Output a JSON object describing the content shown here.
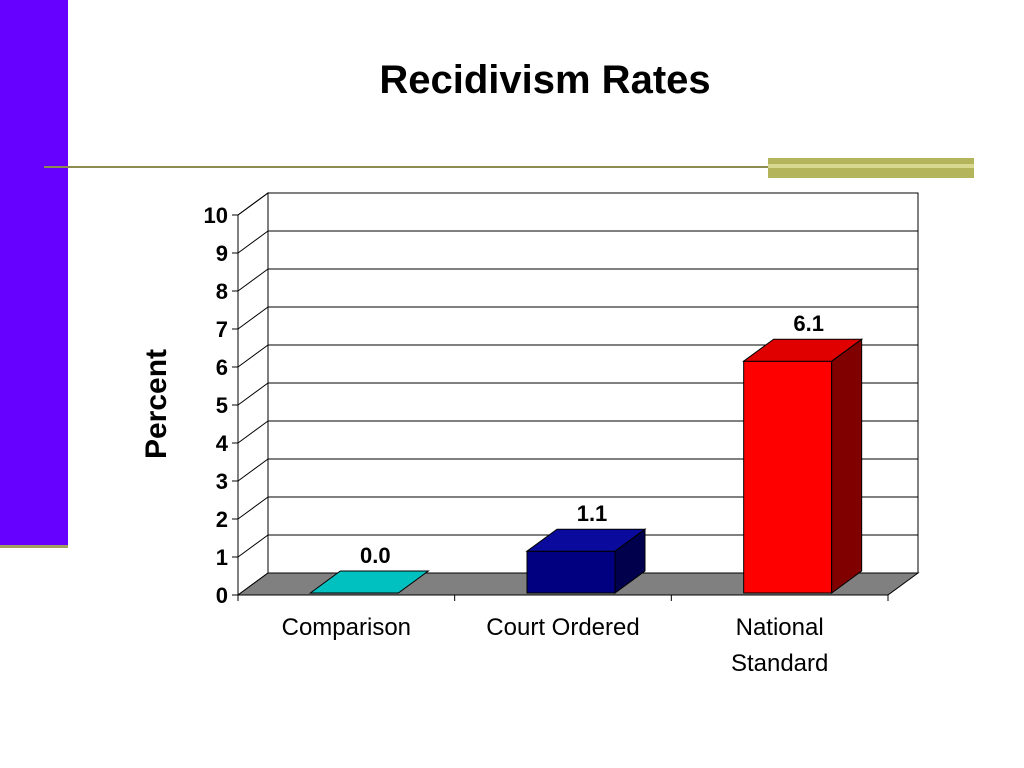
{
  "slide": {
    "title": "Recidivism Rates",
    "accent_color": "#6600ff",
    "rule_color": "#8c8c50",
    "rule_block_color": "#b4b45a"
  },
  "chart_data": {
    "type": "bar",
    "title": "Recidivism Rates",
    "xlabel": "",
    "ylabel": "Percent",
    "ylim": [
      0,
      10
    ],
    "yticks": [
      0,
      1,
      2,
      3,
      4,
      5,
      6,
      7,
      8,
      9,
      10
    ],
    "grid": true,
    "three_d": true,
    "legend": "none",
    "categories": [
      "Comparison",
      "Court Ordered",
      "National Standard"
    ],
    "category_lines": [
      [
        "Comparison"
      ],
      [
        "Court Ordered"
      ],
      [
        "National",
        "Standard"
      ]
    ],
    "values": [
      0.0,
      1.1,
      6.1
    ],
    "data_labels": [
      "0.0",
      "1.1",
      "6.1"
    ],
    "colors": [
      {
        "front": "#00c0c0",
        "top": "#33d6d6",
        "side": "#008c8c"
      },
      {
        "front": "#000080",
        "top": "#0a0a9c",
        "side": "#00004c"
      },
      {
        "front": "#ff0000",
        "top": "#e00000",
        "side": "#800000"
      }
    ],
    "floor_color": "#808080",
    "wall_color": "#ffffff"
  }
}
